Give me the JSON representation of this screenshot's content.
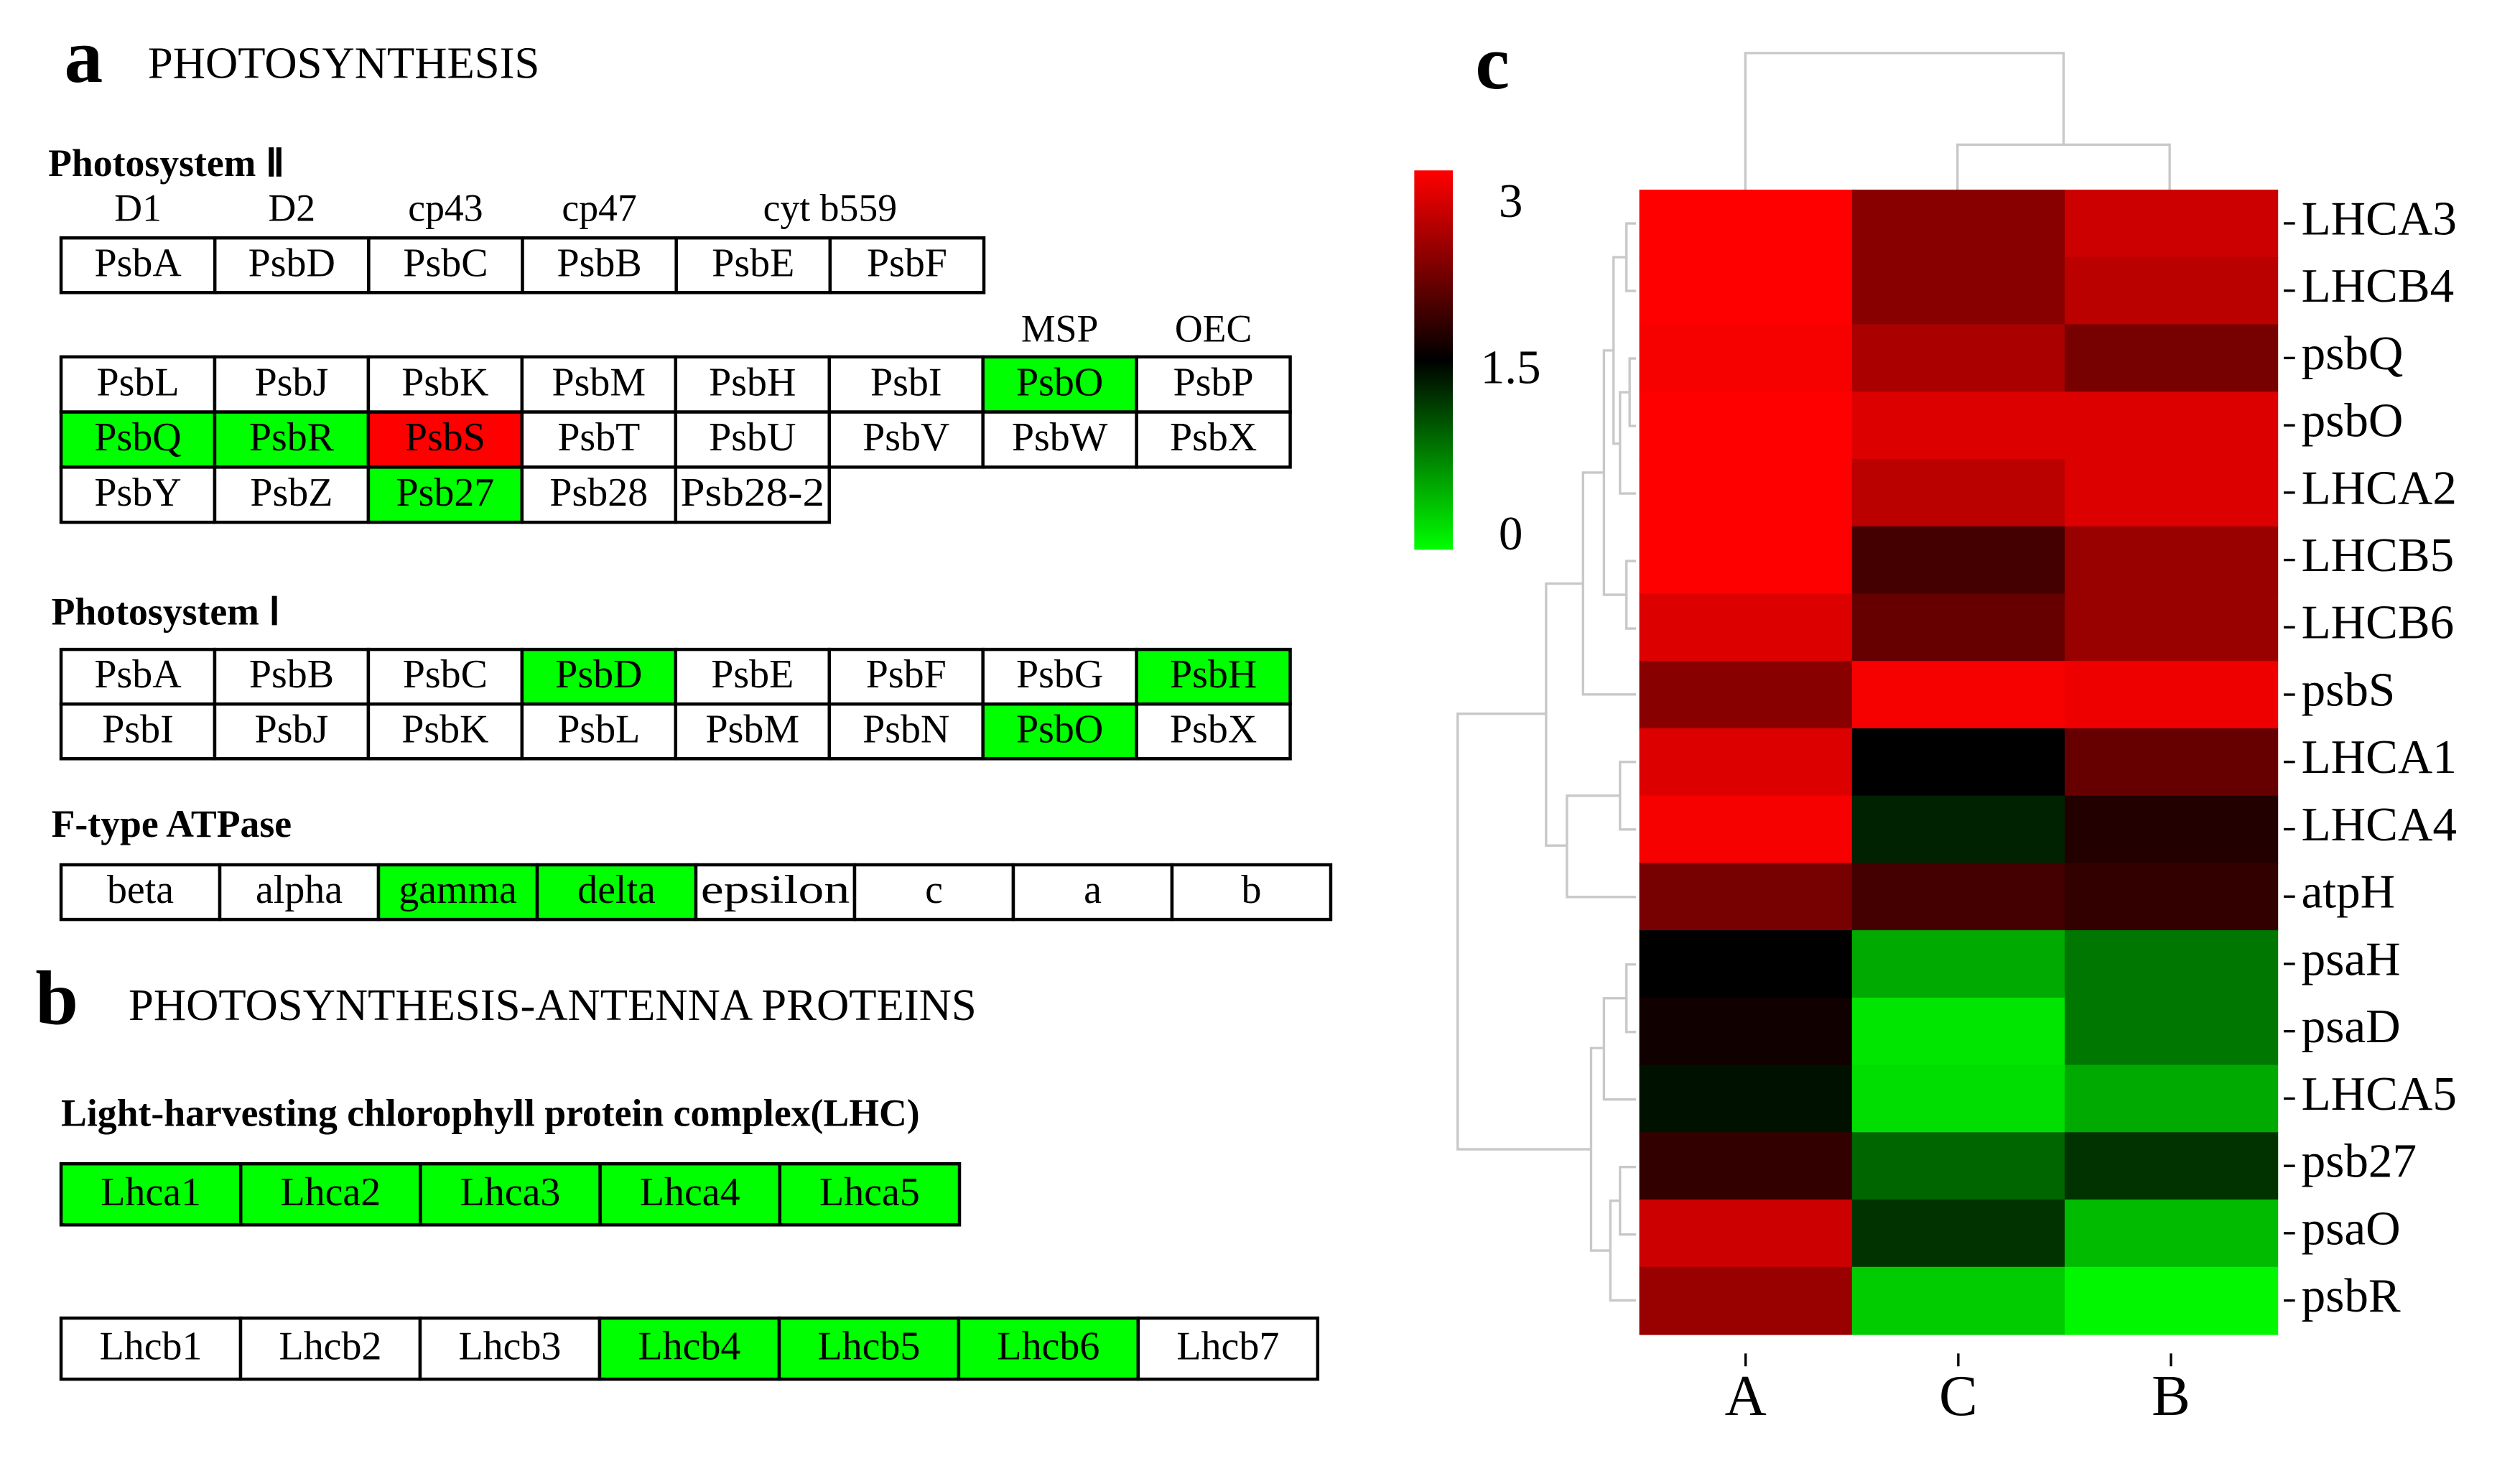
{
  "panel_a": {
    "letter": "a",
    "title": "PHOTOSYNTHESIS",
    "blocks": [
      {
        "title": "Photosystem Ⅱ",
        "headers": [
          "D1",
          "D2",
          "cp43",
          "cp47",
          "cyt b559"
        ],
        "rows": [
          [
            {
              "label": "PsbA",
              "color": "#ffffff"
            },
            {
              "label": "PsbD",
              "color": "#ffffff"
            },
            {
              "label": "PsbC",
              "color": "#ffffff"
            },
            {
              "label": "PsbB",
              "color": "#ffffff"
            },
            {
              "label": "PsbE",
              "color": "#ffffff"
            },
            {
              "label": "PsbF",
              "color": "#ffffff"
            }
          ]
        ]
      },
      {
        "headers": [
          "MSP",
          "OEC"
        ],
        "rows": [
          [
            {
              "label": "PsbL",
              "color": "#ffffff"
            },
            {
              "label": "PsbJ",
              "color": "#ffffff"
            },
            {
              "label": "PsbK",
              "color": "#ffffff"
            },
            {
              "label": "PsbM",
              "color": "#ffffff"
            },
            {
              "label": "PsbH",
              "color": "#ffffff"
            },
            {
              "label": "PsbI",
              "color": "#ffffff"
            },
            {
              "label": "PsbO",
              "color": "#00ff00"
            },
            {
              "label": "PsbP",
              "color": "#ffffff"
            }
          ],
          [
            {
              "label": "PsbQ",
              "color": "#00ff00"
            },
            {
              "label": "PsbR",
              "color": "#00ff00"
            },
            {
              "label": "PsbS",
              "color": "#ff0000"
            },
            {
              "label": "PsbT",
              "color": "#ffffff"
            },
            {
              "label": "PsbU",
              "color": "#ffffff"
            },
            {
              "label": "PsbV",
              "color": "#ffffff"
            },
            {
              "label": "PsbW",
              "color": "#ffffff"
            },
            {
              "label": "PsbX",
              "color": "#ffffff"
            }
          ],
          [
            {
              "label": "PsbY",
              "color": "#ffffff"
            },
            {
              "label": "PsbZ",
              "color": "#ffffff"
            },
            {
              "label": "Psb27",
              "color": "#00ff00"
            },
            {
              "label": "Psb28",
              "color": "#ffffff"
            },
            {
              "label": "Psb28-2",
              "color": "#ffffff"
            }
          ]
        ]
      },
      {
        "title": "Photosystem Ⅰ",
        "rows": [
          [
            {
              "label": "PsbA",
              "color": "#ffffff"
            },
            {
              "label": "PsbB",
              "color": "#ffffff"
            },
            {
              "label": "PsbC",
              "color": "#ffffff"
            },
            {
              "label": "PsbD",
              "color": "#00ff00"
            },
            {
              "label": "PsbE",
              "color": "#ffffff"
            },
            {
              "label": "PsbF",
              "color": "#ffffff"
            },
            {
              "label": "PsbG",
              "color": "#ffffff"
            },
            {
              "label": "PsbH",
              "color": "#00ff00"
            }
          ],
          [
            {
              "label": "PsbI",
              "color": "#ffffff"
            },
            {
              "label": "PsbJ",
              "color": "#ffffff"
            },
            {
              "label": "PsbK",
              "color": "#ffffff"
            },
            {
              "label": "PsbL",
              "color": "#ffffff"
            },
            {
              "label": "PsbM",
              "color": "#ffffff"
            },
            {
              "label": "PsbN",
              "color": "#ffffff"
            },
            {
              "label": "PsbO",
              "color": "#00ff00"
            },
            {
              "label": "PsbX",
              "color": "#ffffff"
            }
          ]
        ]
      },
      {
        "title": "F-type ATPase",
        "rows": [
          [
            {
              "label": "beta",
              "color": "#ffffff"
            },
            {
              "label": "alpha",
              "color": "#ffffff"
            },
            {
              "label": "gamma",
              "color": "#00ff00"
            },
            {
              "label": "delta",
              "color": "#00ff00"
            },
            {
              "label": "epsilon",
              "color": "#ffffff"
            },
            {
              "label": "c",
              "color": "#ffffff"
            },
            {
              "label": "a",
              "color": "#ffffff"
            },
            {
              "label": "b",
              "color": "#ffffff"
            }
          ]
        ]
      }
    ]
  },
  "panel_b": {
    "letter": "b",
    "title": "PHOTOSYNTHESIS-ANTENNA PROTEINS",
    "blocks": [
      {
        "title": "Light-harvesting chlorophyll protein complex(LHC)",
        "rows": [
          [
            {
              "label": "Lhca1",
              "color": "#00ff00"
            },
            {
              "label": "Lhca2",
              "color": "#00ff00"
            },
            {
              "label": "Lhca3",
              "color": "#00ff00"
            },
            {
              "label": "Lhca4",
              "color": "#00ff00"
            },
            {
              "label": "Lhca5",
              "color": "#00ff00"
            }
          ]
        ]
      },
      {
        "rows": [
          [
            {
              "label": "Lhcb1",
              "color": "#ffffff"
            },
            {
              "label": "Lhcb2",
              "color": "#ffffff"
            },
            {
              "label": "Lhcb3",
              "color": "#ffffff"
            },
            {
              "label": "Lhcb4",
              "color": "#00ff00"
            },
            {
              "label": "Lhcb5",
              "color": "#00ff00"
            },
            {
              "label": "Lhcb6",
              "color": "#00ff00"
            },
            {
              "label": "Lhcb7",
              "color": "#ffffff"
            }
          ]
        ]
      }
    ]
  },
  "chart_data": {
    "type": "heatmap",
    "letter": "c",
    "columns": [
      "A",
      "C",
      "B"
    ],
    "rows": [
      "LHCA3",
      "LHCB4",
      "psbQ",
      "psbO",
      "LHCA2",
      "LHCB5",
      "LHCB6",
      "psbS",
      "LHCA1",
      "LHCA4",
      "atpH",
      "psaH",
      "psaD",
      "LHCA5",
      "psb27",
      "psaO",
      "psbR"
    ],
    "values": [
      [
        3,
        2.3,
        2.7
      ],
      [
        3,
        2.3,
        2.6
      ],
      [
        2.95,
        2.5,
        2.2
      ],
      [
        3,
        2.8,
        2.8
      ],
      [
        3,
        2.6,
        2.8
      ],
      [
        3,
        1.9,
        2.4
      ],
      [
        2.8,
        2.1,
        2.4
      ],
      [
        2.3,
        2.95,
        2.9
      ],
      [
        2.8,
        1.5,
        2.1
      ],
      [
        2.95,
        1.3,
        1.7
      ],
      [
        2.2,
        1.9,
        1.8
      ],
      [
        1.5,
        0.5,
        0.8
      ],
      [
        1.6,
        0.15,
        0.8
      ],
      [
        1.4,
        0.2,
        0.5
      ],
      [
        1.8,
        0.9,
        1.2
      ],
      [
        2.7,
        1.2,
        0.4
      ],
      [
        2.4,
        0.3,
        0.05
      ]
    ],
    "zlim": [
      0,
      3
    ],
    "zticks": [
      3,
      1.5,
      0
    ],
    "colors": [
      "#00ff00",
      "#000000",
      "#ff0000"
    ]
  }
}
